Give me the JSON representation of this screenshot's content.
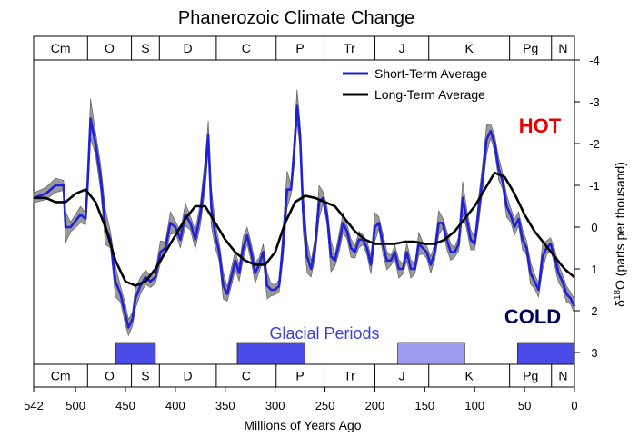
{
  "chart_data": {
    "type": "line",
    "title": "Phanerozoic Climate Change",
    "xlabel": "Millions of Years Ago",
    "ylabel_prefix": "δ",
    "ylabel_sup": "18",
    "ylabel_rest": "O (parts per thousand)",
    "xlim": [
      542,
      0
    ],
    "ylim": [
      -4,
      3
    ],
    "y_inverted": true,
    "x_ticks": [
      542,
      500,
      450,
      400,
      350,
      300,
      250,
      200,
      150,
      100,
      50,
      0
    ],
    "y_ticks": [
      -4,
      -3,
      -2,
      -1,
      0,
      1,
      2,
      3
    ],
    "grid": false,
    "legend_position": "top-right",
    "periods": [
      {
        "label": "Cm",
        "start": 542,
        "end": 488
      },
      {
        "label": "O",
        "start": 488,
        "end": 444
      },
      {
        "label": "S",
        "start": 444,
        "end": 416
      },
      {
        "label": "D",
        "start": 416,
        "end": 359
      },
      {
        "label": "C",
        "start": 359,
        "end": 299
      },
      {
        "label": "P",
        "start": 299,
        "end": 251
      },
      {
        "label": "Tr",
        "start": 251,
        "end": 200
      },
      {
        "label": "J",
        "start": 200,
        "end": 146
      },
      {
        "label": "K",
        "start": 146,
        "end": 65
      },
      {
        "label": "Pg",
        "start": 65,
        "end": 23
      },
      {
        "label": "N",
        "start": 23,
        "end": 0
      }
    ],
    "annotations": {
      "hot": "HOT",
      "cold": "COLD",
      "glacial": "Glacial Periods"
    },
    "glacial_periods": [
      {
        "start": 460,
        "end": 420,
        "color": "#4a4ae6"
      },
      {
        "start": 338,
        "end": 270,
        "color": "#4a4ae6"
      },
      {
        "start": 177,
        "end": 110,
        "color": "#9c9cf0"
      },
      {
        "start": 57,
        "end": 0,
        "color": "#4a4ae6"
      }
    ],
    "series": [
      {
        "name": "Short-Term Average",
        "color": "#1f1fdc",
        "x": [
          542,
          530,
          520,
          512,
          510,
          505,
          495,
          490,
          488,
          485,
          480,
          475,
          470,
          465,
          460,
          455,
          450,
          447,
          443,
          440,
          435,
          430,
          425,
          420,
          415,
          410,
          405,
          400,
          395,
          390,
          385,
          380,
          375,
          370,
          367,
          364,
          360,
          356,
          352,
          348,
          344,
          340,
          336,
          332,
          328,
          324,
          320,
          316,
          312,
          308,
          304,
          300,
          296,
          292,
          288,
          284,
          281,
          278,
          275,
          272,
          268,
          264,
          260,
          256,
          252,
          248,
          244,
          240,
          236,
          232,
          228,
          224,
          220,
          216,
          212,
          208,
          204,
          200,
          196,
          192,
          188,
          184,
          180,
          176,
          172,
          168,
          164,
          160,
          156,
          152,
          148,
          144,
          140,
          136,
          132,
          128,
          124,
          120,
          116,
          112,
          108,
          104,
          100,
          96,
          92,
          88,
          84,
          80,
          76,
          72,
          68,
          64,
          60,
          56,
          52,
          48,
          44,
          40,
          36,
          32,
          28,
          24,
          20,
          16,
          12,
          8,
          4,
          0
        ],
        "y": [
          -0.7,
          -0.8,
          -1.0,
          -1.0,
          0.0,
          0.0,
          -0.3,
          -0.2,
          -1.0,
          -2.6,
          -2.0,
          -1.2,
          0.0,
          0.3,
          1.3,
          1.6,
          2.1,
          2.4,
          2.2,
          1.7,
          1.4,
          1.2,
          1.3,
          1.2,
          0.6,
          0.5,
          -0.1,
          0.0,
          0.3,
          -0.3,
          -0.1,
          0.3,
          -0.3,
          -1.3,
          -2.2,
          -0.5,
          0.2,
          0.6,
          1.4,
          1.6,
          1.2,
          0.8,
          1.1,
          0.5,
          0.2,
          0.6,
          1.1,
          0.9,
          0.6,
          1.4,
          1.5,
          1.5,
          1.4,
          0.4,
          -0.9,
          -0.9,
          -1.8,
          -2.9,
          -2.2,
          -0.4,
          0.7,
          1.0,
          0.5,
          -0.6,
          -0.7,
          -0.3,
          0.7,
          0.8,
          0.4,
          -0.1,
          0.1,
          0.5,
          0.6,
          0.3,
          0.3,
          0.5,
          0.9,
          0.0,
          -0.1,
          0.4,
          0.8,
          0.8,
          0.6,
          1.0,
          1.0,
          0.6,
          1.0,
          1.0,
          0.4,
          0.5,
          0.6,
          0.9,
          0.6,
          -0.1,
          -0.1,
          0.3,
          0.6,
          0.6,
          0.4,
          -0.7,
          -0.2,
          0.3,
          0.4,
          -0.4,
          -1.2,
          -2.1,
          -2.3,
          -2.0,
          -1.4,
          -1.1,
          -0.5,
          -0.3,
          0.0,
          -0.2,
          0.3,
          0.5,
          1.1,
          1.3,
          1.5,
          0.7,
          0.5,
          0.4,
          0.7,
          1.1,
          1.3,
          1.6,
          1.7,
          1.9
        ]
      },
      {
        "name": "Long-Term Average",
        "color": "#000000",
        "x": [
          542,
          530,
          520,
          510,
          500,
          490,
          480,
          470,
          460,
          450,
          440,
          430,
          420,
          410,
          400,
          390,
          380,
          370,
          360,
          350,
          340,
          330,
          320,
          310,
          300,
          290,
          280,
          270,
          260,
          250,
          240,
          230,
          220,
          210,
          200,
          190,
          180,
          170,
          160,
          150,
          140,
          130,
          120,
          110,
          100,
          90,
          80,
          70,
          60,
          50,
          40,
          30,
          20,
          10,
          0
        ],
        "y": [
          -0.7,
          -0.7,
          -0.6,
          -0.6,
          -0.8,
          -0.9,
          -0.6,
          0.0,
          0.8,
          1.3,
          1.4,
          1.3,
          1.0,
          0.6,
          0.2,
          -0.2,
          -0.5,
          -0.5,
          -0.1,
          0.3,
          0.6,
          0.8,
          0.9,
          0.9,
          0.6,
          -0.1,
          -0.6,
          -0.75,
          -0.7,
          -0.6,
          -0.5,
          -0.2,
          0.1,
          0.3,
          0.4,
          0.4,
          0.4,
          0.35,
          0.35,
          0.4,
          0.4,
          0.3,
          0.1,
          -0.2,
          -0.5,
          -0.9,
          -1.3,
          -1.2,
          -0.8,
          -0.3,
          0.1,
          0.4,
          0.7,
          1.0,
          1.2
        ]
      }
    ]
  }
}
